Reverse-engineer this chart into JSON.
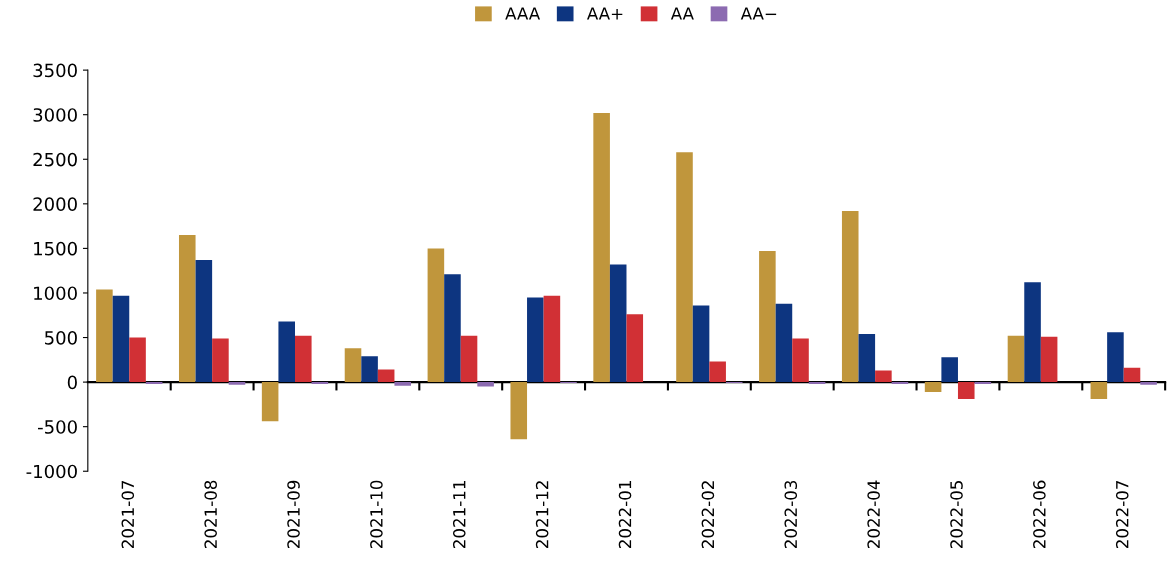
{
  "chart_data": {
    "type": "bar",
    "categories": [
      "2021-07",
      "2021-08",
      "2021-09",
      "2021-10",
      "2021-11",
      "2021-12",
      "2022-01",
      "2022-02",
      "2022-03",
      "2022-04",
      "2022-05",
      "2022-06",
      "2022-07"
    ],
    "series": [
      {
        "name": "AAA",
        "color": "#c0963c",
        "values": [
          1040,
          1650,
          -440,
          380,
          1500,
          -640,
          3020,
          2580,
          1470,
          1920,
          -110,
          520,
          -190
        ]
      },
      {
        "name": "AA+",
        "color": "#0d3580",
        "values": [
          970,
          1370,
          680,
          290,
          1210,
          950,
          1320,
          860,
          880,
          540,
          280,
          1120,
          560
        ]
      },
      {
        "name": "AA",
        "color": "#d13035",
        "values": [
          500,
          490,
          520,
          140,
          520,
          970,
          760,
          230,
          490,
          130,
          -190,
          510,
          160
        ]
      },
      {
        "name": "AA−",
        "color": "#8c6bb1",
        "values": [
          -20,
          -30,
          -20,
          -40,
          -50,
          -10,
          0,
          -10,
          -20,
          -20,
          -20,
          0,
          -30
        ]
      }
    ],
    "ylim": [
      -1000,
      3500
    ],
    "yticks": [
      -1000,
      -500,
      0,
      500,
      1000,
      1500,
      2000,
      2500,
      3000,
      3500
    ],
    "legend": "top"
  }
}
